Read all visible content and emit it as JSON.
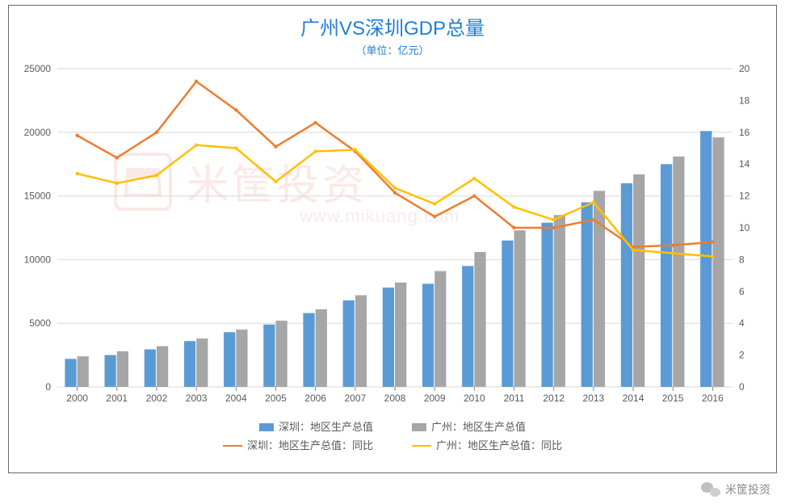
{
  "title": "广州VS深圳GDP总量",
  "subtitle": "（单位：亿元）",
  "watermark_text": "米筐投资",
  "watermark_url": "www.mikuang.com",
  "footer_brand": "米筐投资",
  "chart": {
    "type": "bar+line",
    "background_color": "#ffffff",
    "grid_color": "#d9d9d9",
    "border_color": "#666666",
    "title_color": "#1f7ed6",
    "axis_label_color": "#595959",
    "title_fontsize": 24,
    "subtitle_fontsize": 13,
    "axis_fontsize": 12,
    "legend_fontsize": 13,
    "categories": [
      "2000",
      "2001",
      "2002",
      "2003",
      "2004",
      "2005",
      "2006",
      "2007",
      "2008",
      "2009",
      "2010",
      "2011",
      "2012",
      "2013",
      "2014",
      "2015",
      "2016"
    ],
    "y_left": {
      "min": 0,
      "max": 25000,
      "ticks": [
        0,
        5000,
        10000,
        15000,
        20000,
        25000
      ]
    },
    "y_right": {
      "min": 0,
      "max": 20,
      "ticks": [
        0,
        2,
        4,
        6,
        8,
        10,
        12,
        14,
        16,
        18,
        20
      ]
    },
    "bar_group_width": 0.62,
    "series": {
      "shenzhen_gdp": {
        "label": "深圳：地区生产总值",
        "type": "bar",
        "color": "#5b9bd5",
        "axis": "left",
        "values": [
          2200,
          2500,
          2950,
          3600,
          4300,
          4900,
          5800,
          6800,
          7800,
          8100,
          9500,
          11500,
          12900,
          14500,
          16000,
          17500,
          20100
        ]
      },
      "guangzhou_gdp": {
        "label": "广州：地区生产总值",
        "type": "bar",
        "color": "#a6a6a6",
        "axis": "left",
        "values": [
          2400,
          2800,
          3200,
          3800,
          4500,
          5200,
          6100,
          7200,
          8200,
          9100,
          10600,
          12300,
          13500,
          15400,
          16700,
          18100,
          19600
        ]
      },
      "shenzhen_yoy": {
        "label": "深圳：地区生产总值：同比",
        "type": "line",
        "color": "#ed7d31",
        "line_width": 2.5,
        "axis": "right",
        "values": [
          15.8,
          14.4,
          16.0,
          19.2,
          17.4,
          15.1,
          16.6,
          14.8,
          12.2,
          10.7,
          12.0,
          10.0,
          10.0,
          10.5,
          8.8,
          8.9,
          9.1
        ]
      },
      "guangzhou_yoy": {
        "label": "广州：地区生产总值：同比",
        "type": "line",
        "color": "#ffc000",
        "line_width": 2.5,
        "axis": "right",
        "values": [
          13.4,
          12.8,
          13.3,
          15.2,
          15.0,
          12.9,
          14.8,
          14.9,
          12.5,
          11.5,
          13.1,
          11.3,
          10.5,
          11.6,
          8.6,
          8.4,
          8.2
        ]
      }
    },
    "legend": {
      "rows": [
        [
          "shenzhen_gdp",
          "guangzhou_gdp"
        ],
        [
          "shenzhen_yoy",
          "guangzhou_yoy"
        ]
      ]
    }
  }
}
